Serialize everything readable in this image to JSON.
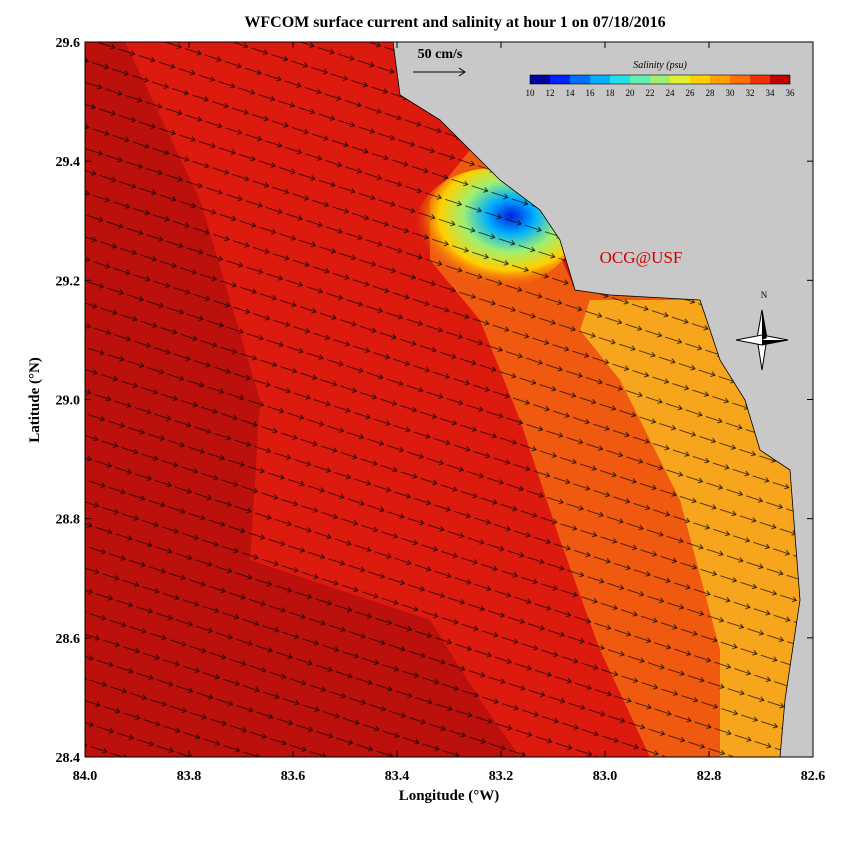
{
  "chart_data": {
    "type": "map",
    "title": "WFCOM surface current and salinity at hour 1 on 07/18/2016",
    "x_label": "Longitude (°W)",
    "y_label": "Latitude (°N)",
    "xlim": [
      84.0,
      82.6
    ],
    "ylim": [
      28.4,
      29.6
    ],
    "xticks": [
      {
        "value": 84.0,
        "label": "84.0"
      },
      83.8,
      83.6,
      83.4,
      83.2,
      {
        "value": 83.0,
        "label": "83.0"
      },
      82.8,
      82.6
    ],
    "yticks": [
      28.4,
      28.6,
      28.8,
      {
        "value": 29.0,
        "label": "29.0"
      },
      29.2,
      29.4,
      29.6
    ],
    "scale_label": "50 cm/s",
    "annotation": "OCG@USF",
    "compass_label": "N",
    "colorbar": {
      "title": "Salinity (psu)",
      "ticks": [
        10,
        12,
        14,
        16,
        18,
        20,
        22,
        24,
        26,
        28,
        30,
        32,
        34,
        36
      ],
      "colors": [
        "#0000a0",
        "#0020ff",
        "#0070ff",
        "#00b0ff",
        "#20e0f0",
        "#60f0b0",
        "#a0f070",
        "#e0f030",
        "#ffd000",
        "#ffa000",
        "#ff7000",
        "#f03000",
        "#c00000"
      ]
    }
  }
}
